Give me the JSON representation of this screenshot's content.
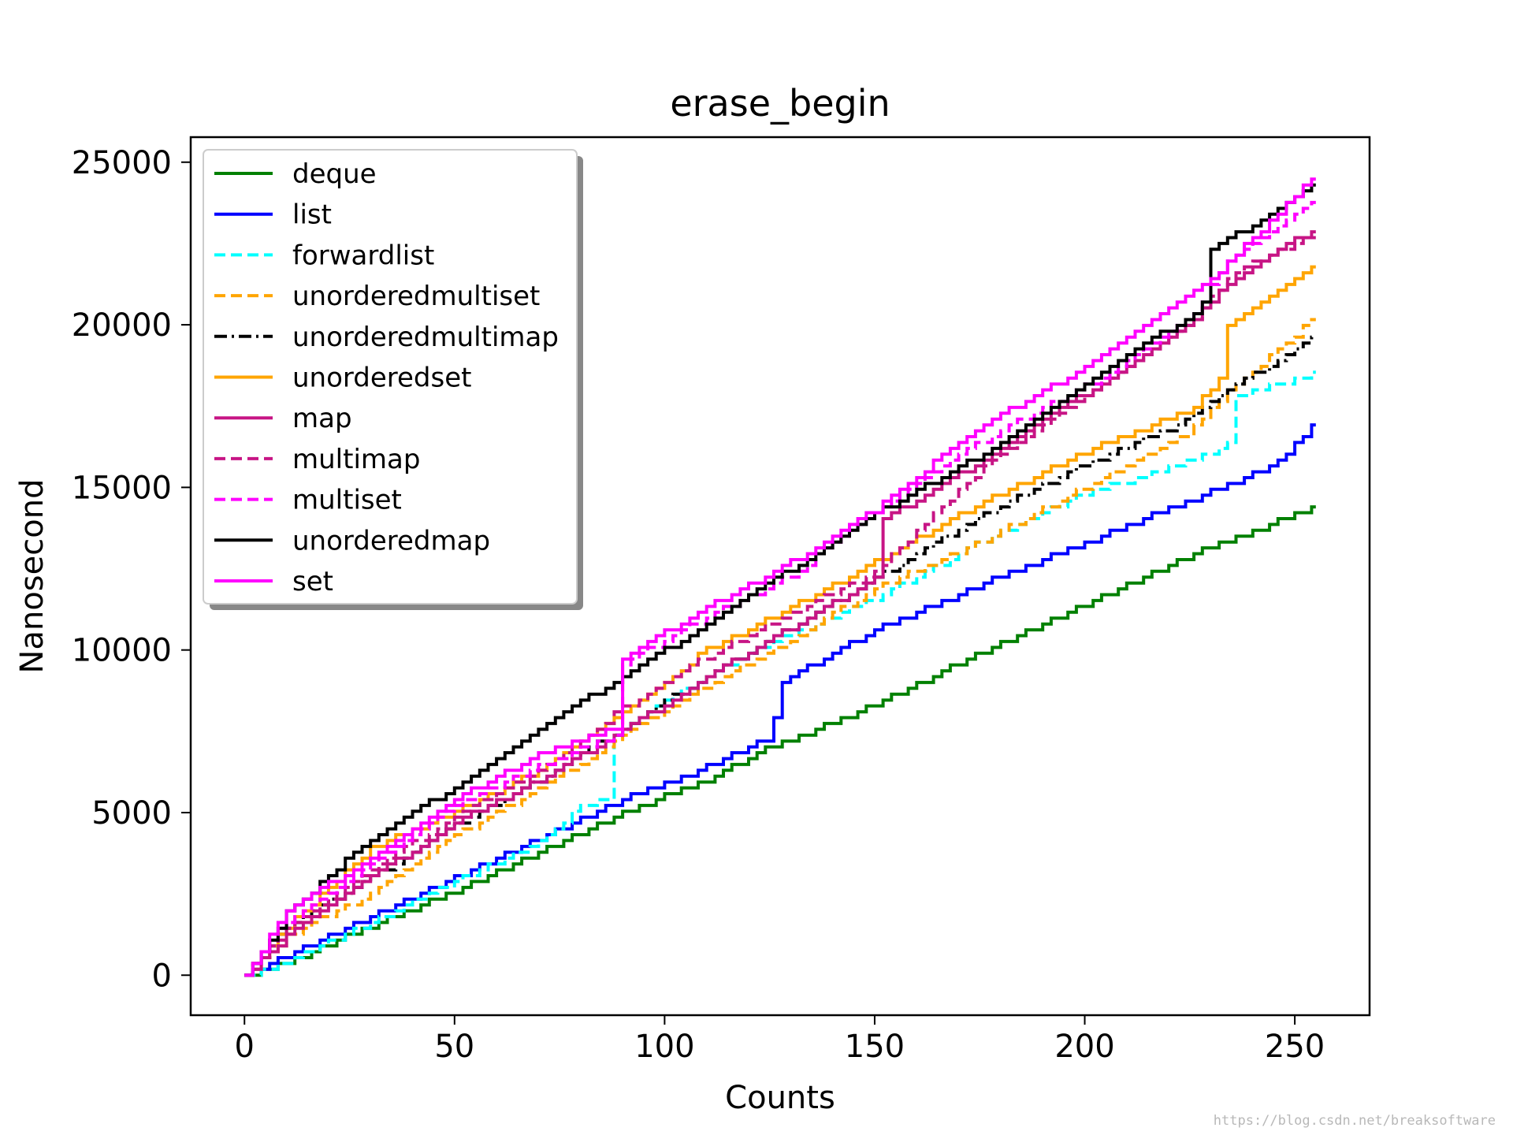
{
  "chart_data": {
    "type": "line",
    "title": "erase_begin",
    "xlabel": "Counts",
    "ylabel": "Nanosecond",
    "xlim": [
      -12.8,
      267.8
    ],
    "ylim": [
      -1230,
      25770
    ],
    "xticks": [
      0,
      50,
      100,
      150,
      200,
      250
    ],
    "yticks": [
      0,
      5000,
      10000,
      15000,
      20000,
      25000
    ],
    "x_tick_labels": [
      "0",
      "50",
      "100",
      "150",
      "200",
      "250"
    ],
    "y_tick_labels": [
      "0",
      "5000",
      "10000",
      "15000",
      "20000",
      "25000"
    ],
    "grid": false,
    "legend_position": "upper-left",
    "series": [
      {
        "name": "deque",
        "color": "#008000",
        "dash": "solid",
        "x": [
          0,
          10,
          30,
          50,
          70,
          90,
          110,
          125,
          150,
          175,
          200,
          225,
          255
        ],
        "y": [
          0,
          400,
          1500,
          2600,
          3800,
          5000,
          6000,
          7000,
          8300,
          9900,
          11400,
          12900,
          14400
        ]
      },
      {
        "name": "list",
        "color": "#0000ff",
        "dash": "solid",
        "x": [
          0,
          10,
          30,
          50,
          70,
          90,
          110,
          125,
          126,
          127,
          150,
          175,
          200,
          225,
          245,
          255
        ],
        "y": [
          0,
          600,
          1800,
          3000,
          4200,
          5400,
          6400,
          7300,
          8000,
          9000,
          10600,
          12000,
          13300,
          14600,
          15700,
          17000
        ]
      },
      {
        "name": "forwardlist",
        "color": "#00ffff",
        "dash": "dashed",
        "x": [
          0,
          10,
          30,
          50,
          70,
          80,
          86,
          87,
          88,
          100,
          125,
          150,
          175,
          200,
          225,
          235,
          236,
          255
        ],
        "y": [
          0,
          400,
          1600,
          2900,
          4100,
          5200,
          5400,
          6000,
          7400,
          8500,
          10200,
          11600,
          13300,
          14800,
          15800,
          16400,
          17800,
          18500
        ]
      },
      {
        "name": "unorderedmultiset",
        "color": "#ffa500",
        "dash": "dashed",
        "x": [
          0,
          10,
          30,
          50,
          70,
          90,
          110,
          130,
          150,
          175,
          200,
          225,
          235,
          250,
          255
        ],
        "y": [
          0,
          1200,
          2500,
          4300,
          5700,
          7400,
          8900,
          10300,
          11900,
          13300,
          15000,
          16700,
          18100,
          19600,
          20400
        ]
      },
      {
        "name": "unorderedmultimap",
        "color": "#000000",
        "dash": "dashdot",
        "x": [
          0,
          10,
          30,
          50,
          70,
          90,
          110,
          130,
          150,
          175,
          200,
          225,
          235,
          250,
          254,
          255
        ],
        "y": [
          0,
          1500,
          3000,
          4600,
          6000,
          7600,
          9200,
          10700,
          12200,
          14100,
          15700,
          17100,
          18100,
          19200,
          19600,
          20800
        ]
      },
      {
        "name": "unorderedset",
        "color": "#ffa500",
        "dash": "solid",
        "x": [
          0,
          10,
          30,
          50,
          70,
          90,
          110,
          130,
          150,
          175,
          200,
          225,
          232,
          234,
          255
        ],
        "y": [
          0,
          1500,
          3900,
          5000,
          6300,
          8100,
          10000,
          11300,
          12700,
          14500,
          16100,
          17400,
          18300,
          20000,
          21900
        ]
      },
      {
        "name": "map",
        "color": "#c71585",
        "dash": "solid",
        "x": [
          0,
          10,
          30,
          50,
          70,
          90,
          110,
          130,
          150,
          151,
          152,
          175,
          200,
          225,
          235,
          255
        ],
        "y": [
          0,
          1200,
          3000,
          4700,
          6000,
          7500,
          9200,
          10700,
          12200,
          12900,
          14000,
          15800,
          17900,
          20100,
          21400,
          23000
        ]
      },
      {
        "name": "multimap",
        "color": "#c71585",
        "dash": "dashed",
        "x": [
          0,
          10,
          30,
          50,
          70,
          90,
          110,
          130,
          150,
          175,
          200,
          225,
          235,
          255
        ],
        "y": [
          0,
          1400,
          3200,
          4900,
          6300,
          8200,
          9800,
          11100,
          12400,
          15500,
          17900,
          20000,
          21600,
          22800
        ]
      },
      {
        "name": "multiset",
        "color": "#ff00ff",
        "dash": "dashed",
        "x": [
          0,
          10,
          30,
          50,
          70,
          88,
          89,
          90,
          110,
          130,
          150,
          175,
          200,
          225,
          235,
          255
        ],
        "y": [
          0,
          1700,
          3400,
          5200,
          6400,
          7400,
          9000,
          9600,
          11000,
          12300,
          14200,
          16400,
          18100,
          20200,
          22100,
          23800
        ]
      },
      {
        "name": "unorderedmap",
        "color": "#000000",
        "dash": "solid",
        "x": [
          0,
          10,
          30,
          50,
          70,
          90,
          110,
          130,
          150,
          175,
          200,
          225,
          229,
          230,
          240,
          255
        ],
        "y": [
          0,
          1900,
          4200,
          5800,
          7600,
          9200,
          10800,
          12500,
          14200,
          16000,
          18200,
          20300,
          20800,
          22300,
          23100,
          24300
        ]
      },
      {
        "name": "set",
        "color": "#ff00ff",
        "dash": "solid",
        "x": [
          0,
          10,
          30,
          50,
          70,
          88,
          89,
          90,
          110,
          130,
          150,
          175,
          200,
          225,
          230,
          255
        ],
        "y": [
          0,
          2000,
          3600,
          5400,
          6800,
          7600,
          9500,
          9800,
          11300,
          12700,
          14300,
          16900,
          18700,
          20900,
          21400,
          24600
        ]
      }
    ]
  },
  "watermark": "https://blog.csdn.net/breaksoftware"
}
